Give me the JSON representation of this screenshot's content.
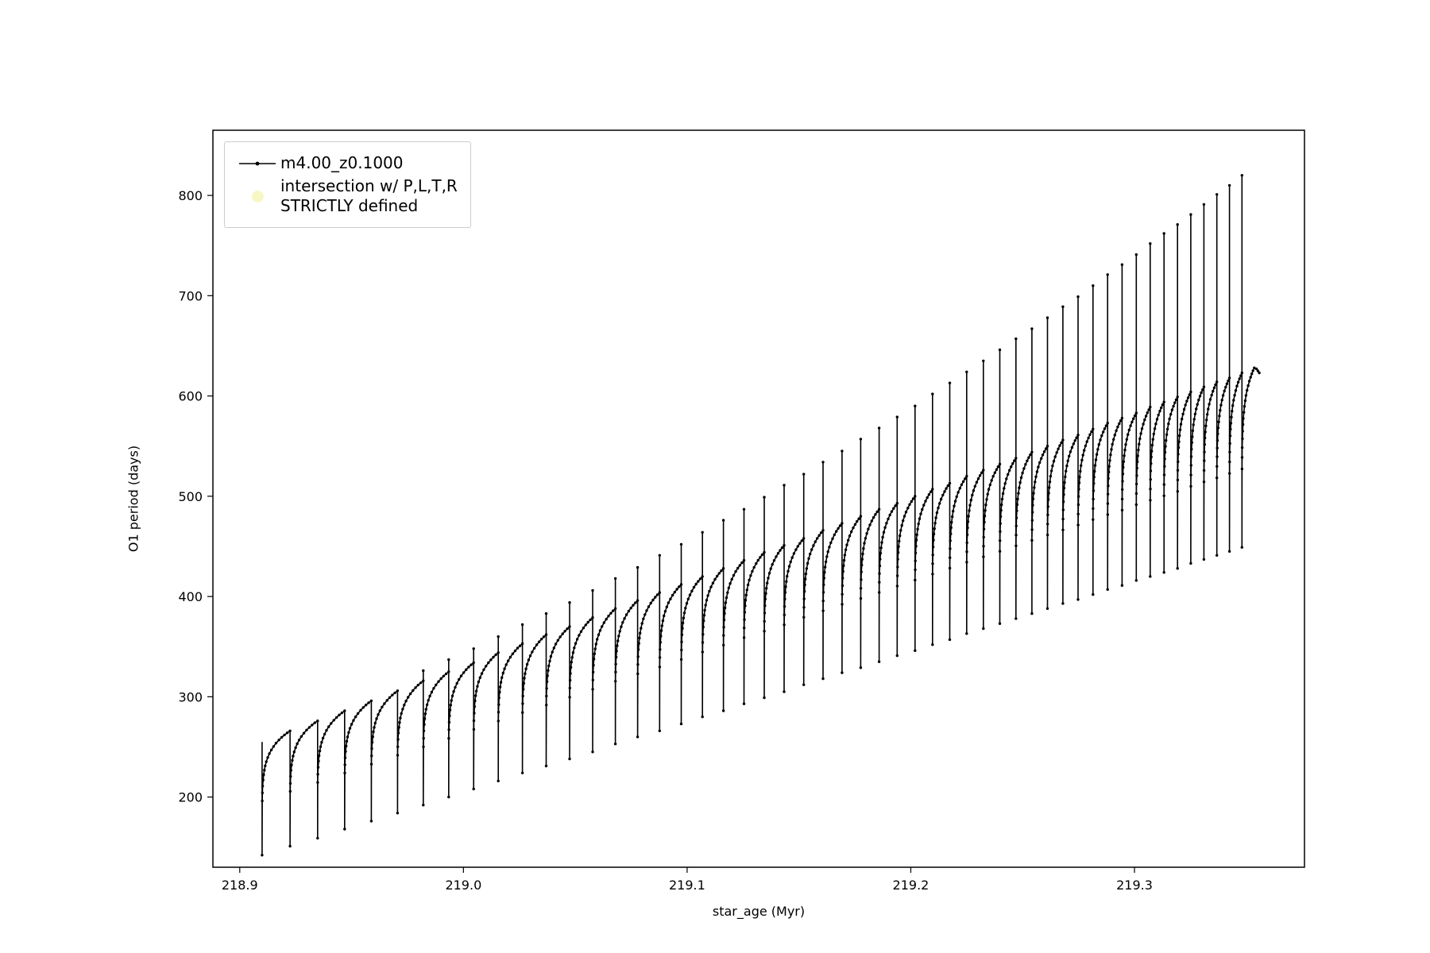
{
  "figure": {
    "background": "#ffffff",
    "line_color": "#000000"
  },
  "axes": {
    "xlabel": "star_age (Myr)",
    "ylabel": "O1 period (days)",
    "x_tick_labels": [
      "218.9",
      "219.0",
      "219.1",
      "219.2",
      "219.3"
    ],
    "y_tick_labels": [
      "200",
      "300",
      "400",
      "500",
      "600",
      "700",
      "800"
    ]
  },
  "legend": {
    "entries": [
      {
        "label": "m4.00_z0.1000",
        "marker": "line-with-dot",
        "color": "#000000"
      },
      {
        "label_line1": "intersection w/ P,L,T,R",
        "label_line2": "STRICTLY defined",
        "marker": "circle",
        "color": "#f7f7c6"
      }
    ]
  },
  "chart_data": {
    "type": "line",
    "title": "",
    "xlabel": "star_age (Myr)",
    "ylabel": "O1 period (days)",
    "series_name": "m4.00_z0.1000",
    "xlim": [
      218.888,
      219.376
    ],
    "ylim": [
      130,
      865
    ],
    "x_tick_values": [
      218.9,
      219.0,
      219.1,
      219.2,
      219.3
    ],
    "y_tick_values": [
      200,
      300,
      400,
      500,
      600,
      700,
      800
    ],
    "legend_position": "upper left",
    "grid": false,
    "line_color": "#000000",
    "description": "O1 pulsation period vs star age: ~52 sawtooth cycles. Each cycle rises steeply from a trough to a slowly-rising rounded plateau (peak), then drops vertically; from ~219.0 Myr onward a narrow upward needle spike precedes each drop, growing taller toward the right (max ~820 days near 219.345 Myr).",
    "start_y": 255,
    "cycles": {
      "x_start": [
        218.91,
        218.9225,
        218.9348,
        218.9469,
        218.95881,
        218.97053,
        218.98206,
        218.99341,
        219.00458,
        219.01557,
        219.02638,
        219.03701,
        219.04748,
        219.05778,
        219.06792,
        219.07789,
        219.08771,
        219.09737,
        219.10687,
        219.11622,
        219.12542,
        219.13447,
        219.14338,
        219.15215,
        219.16077,
        219.16926,
        219.17761,
        219.18583,
        219.19392,
        219.20188,
        219.20971,
        219.21741,
        219.22499,
        219.23245,
        219.23979,
        219.24702,
        219.25413,
        219.26112,
        219.268,
        219.27477,
        219.28144,
        219.288,
        219.29445,
        219.3008,
        219.30704,
        219.31319,
        219.31924,
        219.32519,
        219.33105,
        219.33681,
        219.34248,
        219.34806,
        219.35355
      ],
      "trough": [
        142,
        151,
        159,
        168,
        176,
        184,
        192,
        200,
        208,
        216,
        224,
        231,
        238,
        245,
        253,
        260,
        266,
        273,
        280,
        286,
        293,
        299,
        305,
        312,
        318,
        324,
        329,
        335,
        341,
        346,
        352,
        357,
        363,
        368,
        373,
        378,
        383,
        388,
        393,
        397,
        402,
        407,
        411,
        416,
        420,
        424,
        428,
        433,
        437,
        441,
        445,
        449
      ],
      "peak": [
        266,
        276,
        286,
        296,
        306,
        316,
        325,
        334,
        344,
        353,
        362,
        370,
        379,
        388,
        396,
        404,
        412,
        420,
        428,
        436,
        444,
        451,
        458,
        466,
        473,
        480,
        487,
        493,
        500,
        507,
        513,
        520,
        526,
        532,
        538,
        544,
        550,
        556,
        561,
        567,
        573,
        578,
        583,
        589,
        594,
        599,
        604,
        609,
        614,
        618,
        623,
        628
      ],
      "spike_top": [
        null,
        null,
        null,
        null,
        null,
        326,
        337,
        348,
        360,
        372,
        383,
        394,
        406,
        418,
        429,
        441,
        452,
        464,
        476,
        487,
        499,
        511,
        522,
        534,
        545,
        557,
        568,
        579,
        590,
        602,
        613,
        624,
        635,
        646,
        657,
        667,
        678,
        689,
        699,
        710,
        721,
        731,
        741,
        752,
        762,
        771,
        781,
        791,
        801,
        810,
        820,
        null
      ]
    },
    "tail": [
      [
        219.3545,
        627
      ],
      [
        219.3552,
        625
      ],
      [
        219.3558,
        623
      ]
    ]
  }
}
